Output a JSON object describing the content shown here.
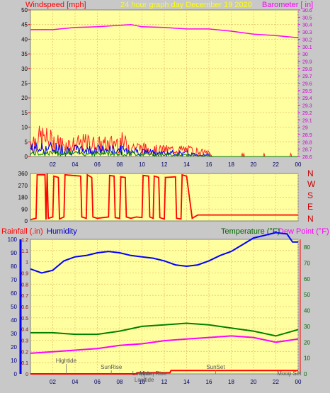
{
  "colors": {
    "background": "#c8c8c8",
    "plot_bg": "#ffffa0",
    "grid": "#e8c070",
    "wind_gust": "#ff2020",
    "wind_avg": "#0000ff",
    "wind_low": "#008000",
    "barometer": "#ff00ff",
    "direction": "#ff0000",
    "rain": "#ff0000",
    "humidity": "#0000ff",
    "temperature": "#008000",
    "dewpoint": "#ff00ff",
    "tide_label": "#707070"
  },
  "header": {
    "wind_label": "Windspeed [mph]",
    "center_title": "24 hour graph day   December 19 2020",
    "baro_label": "Barometer [ in]"
  },
  "direction_labels": [
    "N",
    "W",
    "S",
    "E",
    "N"
  ],
  "panel3": {
    "rain_label": "Rainfall (.in)",
    "humidity_label": "Humidity",
    "temp_label": "Temperature (°F)",
    "dew_label": "Dew Point (°F)"
  },
  "events": [
    {
      "label": "Hightide",
      "hour": 3.2,
      "row": 0
    },
    {
      "label": "SunRise",
      "hour": 7.25,
      "row": 1
    },
    {
      "label": "Lowtide",
      "hour": 10.0,
      "row": 2
    },
    {
      "label": "Moon Rise",
      "hour": 11.0,
      "row": 3
    },
    {
      "label": "Lowtide",
      "hour": 10.2,
      "row": 4
    },
    {
      "label": "SunSet",
      "hour": 16.6,
      "row": 1
    },
    {
      "label": "Moon Set",
      "hour": 23.2,
      "row": 2
    }
  ],
  "chart_data": [
    {
      "type": "line",
      "name": "wind-baro",
      "x_ticks": [
        "02",
        "04",
        "06",
        "08",
        "10",
        "12",
        "14",
        "16",
        "18",
        "20",
        "22",
        "00"
      ],
      "wind_ylim": [
        0,
        50
      ],
      "wind_ticks": [
        "0",
        "5",
        "10",
        "15",
        "20",
        "25",
        "30",
        "35",
        "40",
        "45",
        "50"
      ],
      "baro_ylim": [
        28.6,
        30.6
      ],
      "baro_ticks": [
        "28.6",
        "28.7",
        "28.8",
        "28.9",
        "29",
        "29.1",
        "29.2",
        "29.3",
        "29.4",
        "29.5",
        "29.6",
        "29.7",
        "29.8",
        "29.9",
        "30",
        "30.1",
        "30.2",
        "30.3",
        "30.4",
        "30.5",
        "30.6"
      ],
      "barometer": {
        "x": [
          0,
          2,
          4,
          6,
          8,
          9,
          10,
          12,
          14,
          16,
          18,
          20,
          22,
          24
        ],
        "y": [
          30.33,
          30.33,
          30.36,
          30.37,
          30.39,
          30.4,
          30.37,
          30.36,
          30.34,
          30.34,
          30.31,
          30.27,
          30.25,
          30.22
        ]
      },
      "gust_envelope": {
        "x": [
          0,
          1,
          2,
          3,
          4,
          5,
          6,
          7,
          8,
          9,
          10,
          11,
          12,
          13,
          14,
          15,
          16,
          16.3,
          17,
          24
        ],
        "y": [
          9,
          11,
          9,
          7,
          7,
          8,
          7,
          7,
          9,
          6,
          5,
          4,
          4,
          4,
          4,
          3,
          2,
          0,
          0,
          0
        ]
      },
      "avg_envelope": {
        "x": [
          0,
          2,
          4,
          6,
          8,
          10,
          12,
          14,
          15,
          16,
          16.3,
          24
        ],
        "y": [
          5,
          5,
          4,
          4,
          4,
          3,
          2,
          2,
          1,
          1,
          0,
          0
        ]
      },
      "low_envelope": {
        "x": [
          0,
          2,
          4,
          6,
          8,
          10,
          12,
          14,
          15,
          16,
          16.3,
          24
        ],
        "y": [
          2,
          2,
          2,
          2,
          2,
          1.5,
          1,
          1,
          0.5,
          0.5,
          0,
          0
        ]
      }
    },
    {
      "type": "line",
      "name": "wind-direction",
      "ylim": [
        0,
        360
      ],
      "y_ticks": [
        "0",
        "90",
        "180",
        "270",
        "360"
      ],
      "direction": {
        "x": [
          0,
          0.5,
          0.6,
          1.3,
          1.4,
          1.5,
          1.6,
          2.0,
          2.1,
          2.5,
          2.6,
          3.0,
          3.1,
          4.5,
          4.6,
          5.0,
          5.1,
          5.5,
          5.6,
          6.0,
          6.5,
          7.0,
          7.1,
          7.5,
          7.6,
          8.0,
          8.1,
          8.5,
          8.6,
          9.0,
          9.5,
          10.0,
          10.1,
          10.6,
          10.7,
          11.0,
          11.1,
          11.5,
          11.6,
          12.0,
          12.1,
          13.0,
          13.1,
          13.5,
          13.6,
          14.0,
          14.5,
          15.0,
          24
        ],
        "y": [
          10,
          20,
          350,
          350,
          10,
          360,
          20,
          30,
          340,
          330,
          15,
          30,
          350,
          340,
          30,
          20,
          350,
          330,
          30,
          20,
          25,
          30,
          345,
          340,
          25,
          20,
          335,
          330,
          30,
          20,
          30,
          25,
          345,
          340,
          30,
          20,
          340,
          330,
          25,
          15,
          330,
          335,
          20,
          15,
          350,
          340,
          20,
          45,
          45
        ]
      }
    },
    {
      "type": "line",
      "name": "temp-hum-rain",
      "rain_ylim": [
        0,
        1.2
      ],
      "rain_ticks": [
        "0",
        "0.1",
        "0.2",
        "0.3",
        "0.4",
        "0.5",
        "0.6",
        "0.7",
        "0.8",
        "0.9",
        "1",
        "1.1",
        "1.2"
      ],
      "hum_ylim": [
        0,
        100
      ],
      "hum_ticks": [
        "0",
        "10",
        "20",
        "30",
        "40",
        "50",
        "60",
        "70",
        "80",
        "90",
        "100"
      ],
      "temp_ylim": [
        0,
        85
      ],
      "temp_ticks": [
        "0",
        "10",
        "20",
        "30",
        "40",
        "50",
        "60",
        "70",
        "80"
      ],
      "x_ticks": [
        "02",
        "04",
        "06",
        "08",
        "10",
        "12",
        "14",
        "16",
        "18",
        "20",
        "22",
        "00"
      ],
      "humidity": {
        "x": [
          0,
          1,
          2,
          3,
          4,
          5,
          6,
          7,
          8,
          9,
          10,
          11,
          12,
          13,
          14,
          15,
          16,
          17,
          18,
          19,
          20,
          21,
          22,
          23,
          23.5,
          24
        ],
        "y": [
          78,
          75,
          77,
          84,
          87,
          88,
          90,
          91,
          90,
          88,
          87,
          86,
          84,
          81,
          80,
          81,
          84,
          88,
          91,
          96,
          101,
          103,
          105,
          104,
          98,
          98
        ]
      },
      "temperature": {
        "x": [
          0,
          2,
          4,
          6,
          8,
          10,
          12,
          14,
          16,
          18,
          20,
          22,
          23,
          24
        ],
        "y": [
          26,
          26,
          25,
          25,
          27,
          30,
          31,
          32,
          31,
          29,
          27,
          24,
          26,
          28
        ]
      },
      "dewpoint": {
        "x": [
          0,
          2,
          4,
          6,
          8,
          10,
          12,
          14,
          16,
          18,
          20,
          22,
          24
        ],
        "y": [
          13,
          14,
          15,
          16,
          18,
          19,
          21,
          22,
          23,
          24,
          23,
          20,
          22
        ]
      },
      "rain": {
        "x": [
          0,
          9.5,
          9.6,
          12.5,
          12.6,
          24
        ],
        "y": [
          0,
          0,
          0.01,
          0.01,
          0.03,
          0.03
        ]
      }
    }
  ]
}
